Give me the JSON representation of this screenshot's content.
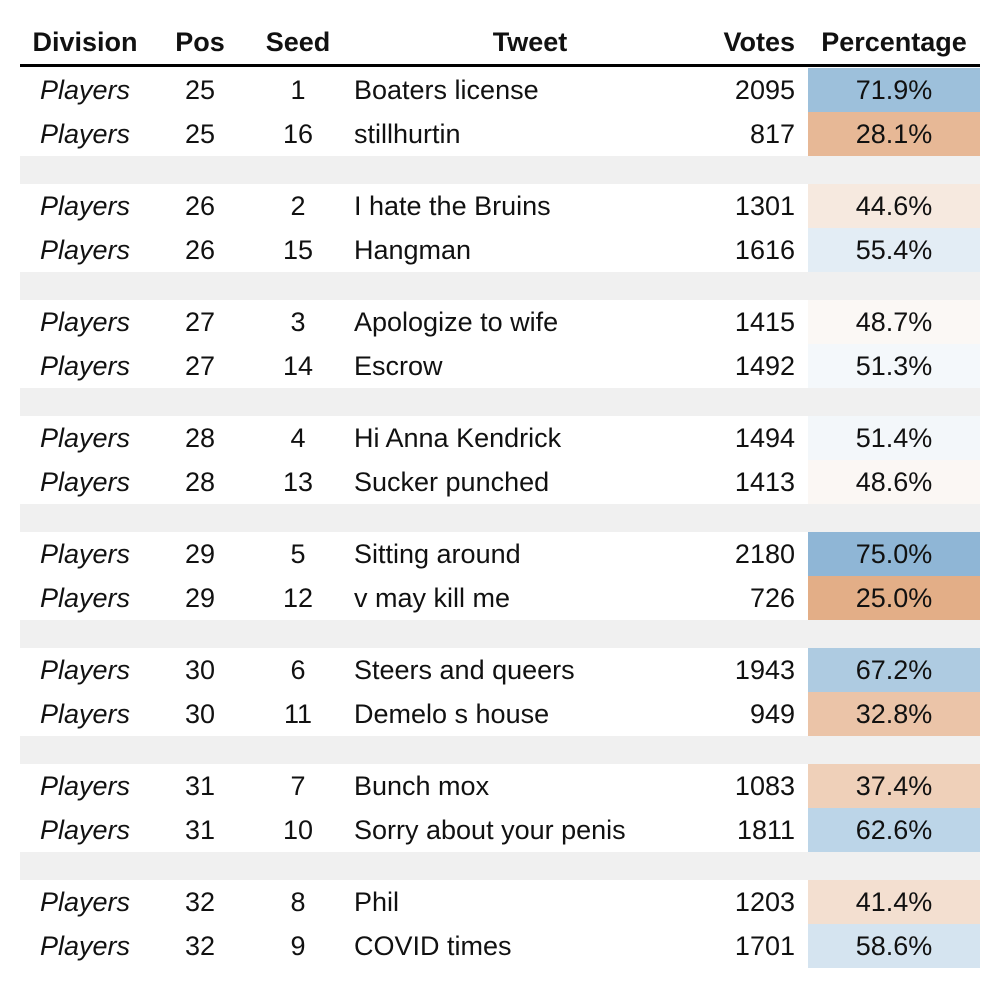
{
  "table": {
    "columns": [
      "Division",
      "Pos",
      "Seed",
      "Tweet",
      "Votes",
      "Percentage"
    ],
    "rows": [
      [
        "Players",
        25,
        1,
        "Boaters license",
        2095,
        "71.9%"
      ],
      [
        "Players",
        25,
        16,
        "stillhurtin",
        817,
        "28.1%"
      ],
      [
        "Players",
        26,
        2,
        "I hate the Bruins",
        1301,
        "44.6%"
      ],
      [
        "Players",
        26,
        15,
        "Hangman",
        1616,
        "55.4%"
      ],
      [
        "Players",
        27,
        3,
        "Apologize to wife",
        1415,
        "48.7%"
      ],
      [
        "Players",
        27,
        14,
        "Escrow",
        1492,
        "51.3%"
      ],
      [
        "Players",
        28,
        4,
        "Hi Anna Kendrick",
        1494,
        "51.4%"
      ],
      [
        "Players",
        28,
        13,
        "Sucker punched",
        1413,
        "48.6%"
      ],
      [
        "Players",
        29,
        5,
        "Sitting around",
        2180,
        "75.0%"
      ],
      [
        "Players",
        29,
        12,
        "v may kill me",
        726,
        "25.0%"
      ],
      [
        "Players",
        30,
        6,
        "Steers and queers",
        1943,
        "67.2%"
      ],
      [
        "Players",
        30,
        11,
        "Demelo s house",
        949,
        "32.8%"
      ],
      [
        "Players",
        31,
        7,
        "Bunch mox",
        1083,
        "37.4%"
      ],
      [
        "Players",
        31,
        10,
        "Sorry about your penis",
        1811,
        "62.6%"
      ],
      [
        "Players",
        32,
        8,
        "Phil",
        1203,
        "41.4%"
      ],
      [
        "Players",
        32,
        9,
        "COVID times",
        1701,
        "58.6%"
      ]
    ],
    "percentage_colors": [
      "#9dc0db",
      "#e7b896",
      "#f6e9df",
      "#e3edf5",
      "#fbf8f5",
      "#f4f8fb",
      "#f3f7fa",
      "#fbf7f4",
      "#8fb6d6",
      "#e3ae87",
      "#aecbe1",
      "#ebc4a8",
      "#efd0b9",
      "#bcd5e8",
      "#f3dfd0",
      "#d5e4f0"
    ]
  }
}
